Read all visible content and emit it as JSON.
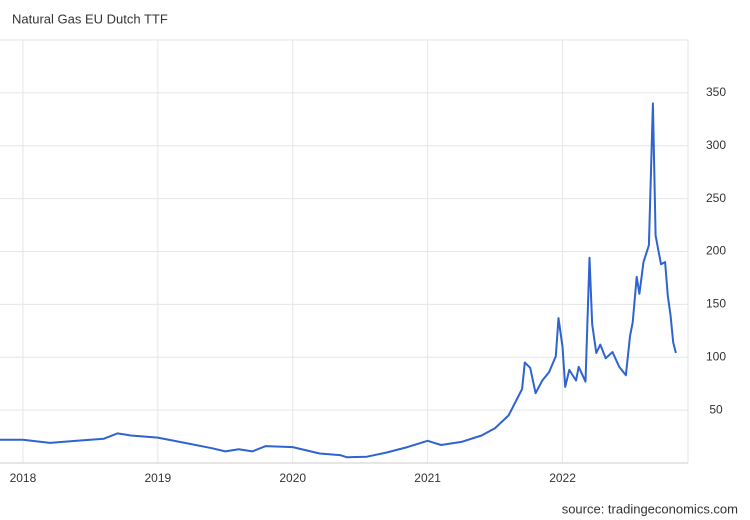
{
  "chart_data": {
    "type": "line",
    "title": "Natural Gas EU Dutch TTF",
    "source": "source: tradingeconomics.com",
    "xlim": [
      2017.83,
      2022.93
    ],
    "xticks": [
      2018,
      2019,
      2020,
      2021,
      2022
    ],
    "ylim": [
      0,
      400
    ],
    "yticks": [
      50,
      100,
      150,
      200,
      250,
      300,
      350
    ],
    "grid": true,
    "series": [
      {
        "name": "Natural Gas EU Dutch TTF",
        "color": "#2e63d1",
        "x": [
          2017.83,
          2018.0,
          2018.2,
          2018.4,
          2018.6,
          2018.7,
          2018.8,
          2019.0,
          2019.2,
          2019.4,
          2019.5,
          2019.6,
          2019.7,
          2019.8,
          2020.0,
          2020.2,
          2020.35,
          2020.4,
          2020.55,
          2020.7,
          2020.85,
          2021.0,
          2021.1,
          2021.25,
          2021.4,
          2021.5,
          2021.6,
          2021.7,
          2021.72,
          2021.76,
          2021.8,
          2021.85,
          2021.9,
          2021.95,
          2021.97,
          2022.0,
          2022.02,
          2022.05,
          2022.1,
          2022.12,
          2022.17,
          2022.2,
          2022.22,
          2022.25,
          2022.28,
          2022.32,
          2022.37,
          2022.42,
          2022.47,
          2022.5,
          2022.52,
          2022.55,
          2022.57,
          2022.6,
          2022.64,
          2022.67,
          2022.69,
          2022.73,
          2022.76,
          2022.78,
          2022.8,
          2022.82,
          2022.84
        ],
        "values": [
          22,
          22,
          19,
          21,
          23,
          28,
          26,
          24,
          19,
          14,
          11,
          13,
          11,
          16,
          15,
          9,
          7.5,
          5.5,
          6,
          10,
          15,
          21,
          17,
          20,
          26,
          33,
          45,
          70,
          95,
          90,
          66,
          78,
          86,
          101,
          137,
          110,
          72,
          88,
          78,
          91,
          77,
          194,
          131,
          104,
          112,
          99,
          105,
          91,
          83,
          120,
          133,
          176,
          160,
          190,
          206,
          340,
          215,
          188,
          190,
          158,
          140,
          114,
          104
        ]
      }
    ]
  }
}
